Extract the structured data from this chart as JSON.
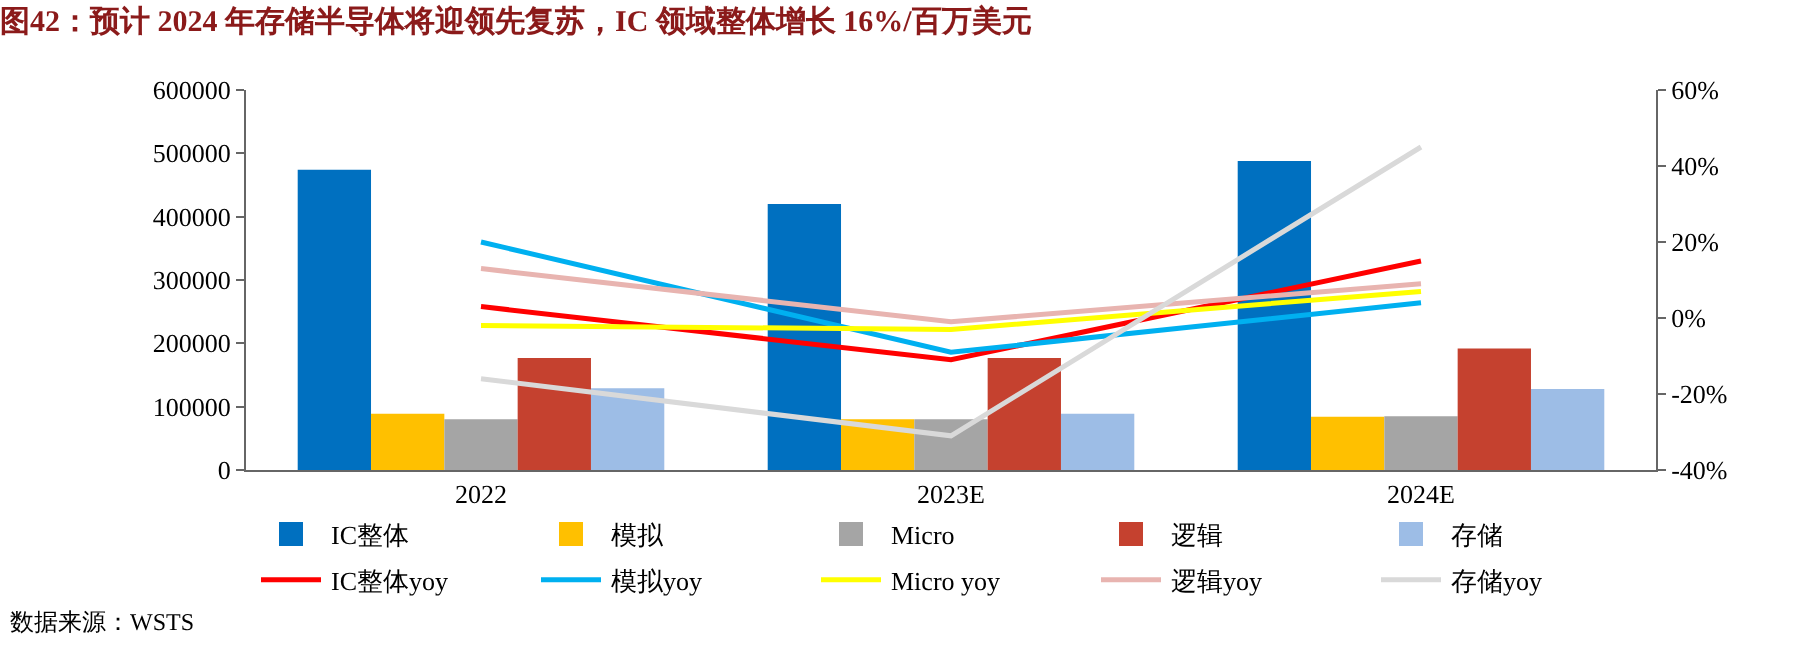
{
  "chart_data": {
    "type": "bar",
    "title": "图42：预计 2024 年存储半导体将迎领先复苏，IC 领域整体增长 16%/百万美元",
    "categories": [
      "2022",
      "2023E",
      "2024E"
    ],
    "series": [
      {
        "name": "IC整体",
        "color": "#0070c0",
        "values": [
          474000,
          420000,
          488000
        ]
      },
      {
        "name": "模拟",
        "color": "#ffc000",
        "values": [
          89000,
          80000,
          84000
        ]
      },
      {
        "name": "Micro",
        "color": "#a5a5a5",
        "values": [
          80000,
          80000,
          85000
        ]
      },
      {
        "name": "逻辑",
        "color": "#c5412f",
        "values": [
          177000,
          177000,
          192000
        ]
      },
      {
        "name": "存储",
        "color": "#9dbde6",
        "values": [
          129000,
          89000,
          128000
        ]
      },
      {
        "name": "IC整体yoy",
        "type": "line",
        "axis": "y2",
        "color": "#ff0000",
        "values": [
          3,
          -11,
          15
        ]
      },
      {
        "name": "模拟yoy",
        "type": "line",
        "axis": "y2",
        "color": "#00b0f0",
        "values": [
          20,
          -9,
          4
        ]
      },
      {
        "name": "Micro yoy",
        "type": "line",
        "axis": "y2",
        "color": "#ffff00",
        "values": [
          -2,
          -3,
          7
        ]
      },
      {
        "name": "逻辑yoy",
        "type": "line",
        "axis": "y2",
        "color": "#e8b4b0",
        "values": [
          13,
          -1,
          9
        ]
      },
      {
        "name": "存储yoy",
        "type": "line",
        "axis": "y2",
        "color": "#d9d9d9",
        "values": [
          -16,
          -31,
          45
        ]
      }
    ],
    "ylim": [
      0,
      600000
    ],
    "yticks": [
      0,
      100000,
      200000,
      300000,
      400000,
      500000,
      600000
    ],
    "y2lim": [
      -40,
      60
    ],
    "y2ticks": [
      {
        "value": -40,
        "label": "-40%"
      },
      {
        "value": -20,
        "label": "-20%"
      },
      {
        "value": 0,
        "label": "0%"
      },
      {
        "value": 20,
        "label": "20%"
      },
      {
        "value": 40,
        "label": "40%"
      },
      {
        "value": 60,
        "label": "60%"
      }
    ],
    "legend": "bottom",
    "marker": "none",
    "line_style": "solid",
    "annotations": [
      "数据来源：WSTS"
    ]
  }
}
